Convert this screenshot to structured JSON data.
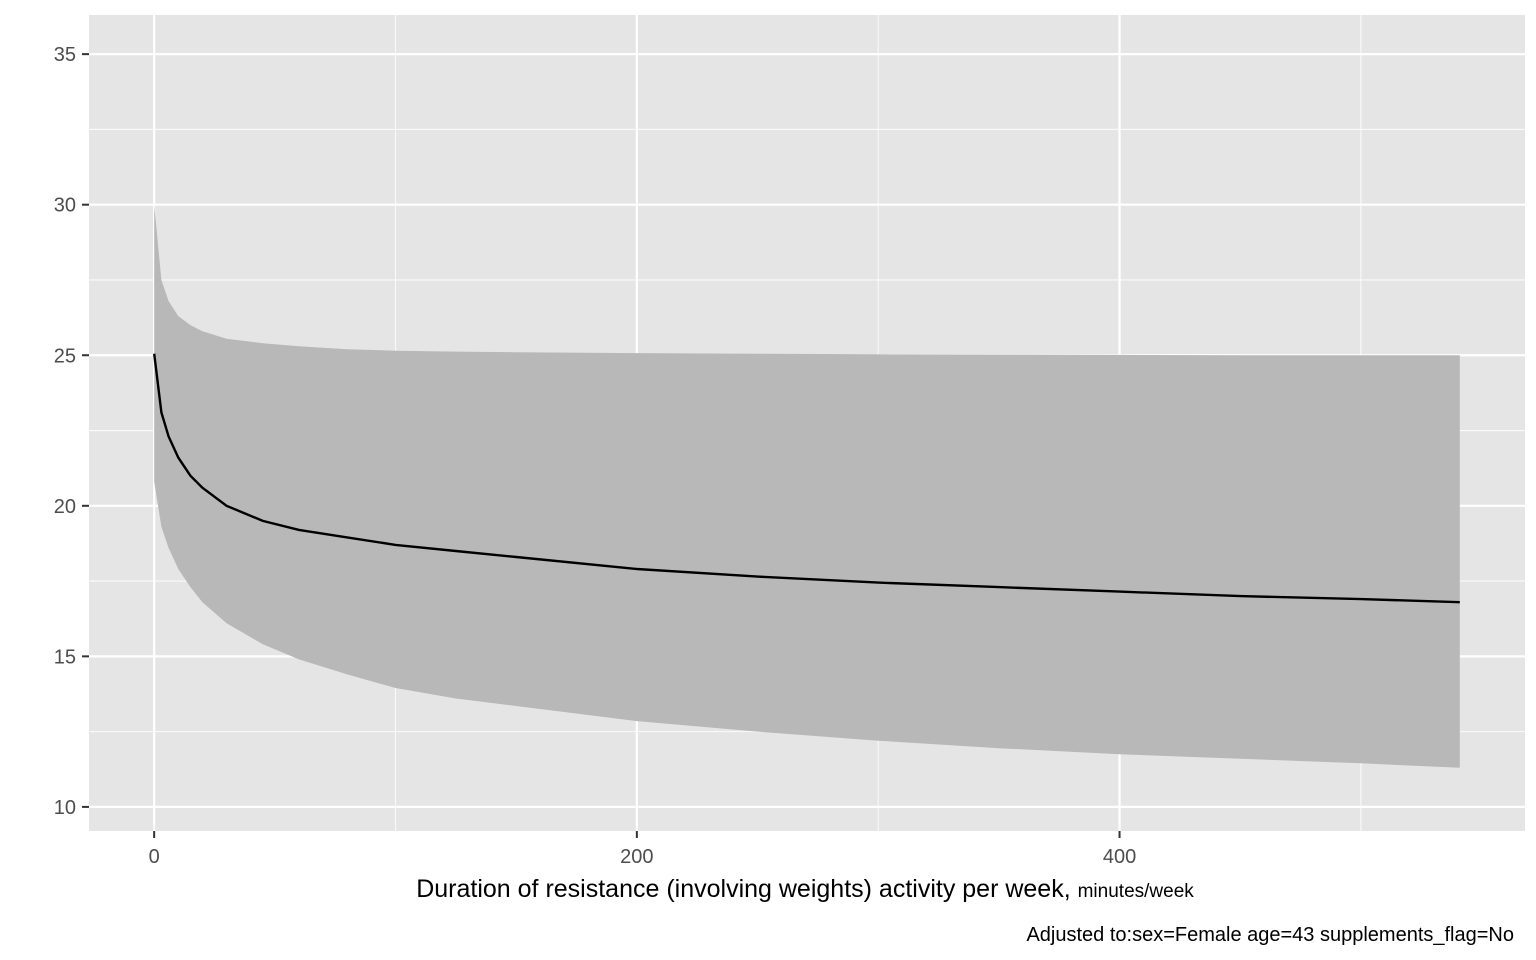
{
  "chart_data": {
    "type": "line",
    "xlabel": "Duration of resistance (involving weights) activity per week,",
    "xlabel_unit": "minutes/week",
    "ylabel": "",
    "caption": "Adjusted to:sex=Female age=43 supplements_flag=No",
    "xlim": [
      -27,
      568
    ],
    "ylim": [
      9.2,
      36.3
    ],
    "x_ticks": [
      0,
      200,
      400
    ],
    "y_ticks": [
      10,
      15,
      20,
      25,
      30,
      35
    ],
    "grid": true,
    "legend": "none",
    "colors": {
      "panel": "#e5e5e5",
      "grid": "#ffffff",
      "line": "#000000",
      "ribbon": "#b8b8b8",
      "tick_text": "#4d4d4d"
    },
    "series": [
      {
        "x": [
          0,
          3,
          6,
          10,
          15,
          20,
          30,
          45,
          60,
          80,
          100,
          125,
          150,
          200,
          250,
          300,
          350,
          400,
          450,
          500,
          541
        ],
        "y": [
          25.05,
          23.1,
          22.3,
          21.6,
          21.0,
          20.6,
          20.0,
          19.5,
          19.2,
          18.95,
          18.7,
          18.5,
          18.3,
          17.9,
          17.65,
          17.45,
          17.3,
          17.15,
          17.0,
          16.9,
          16.8
        ],
        "lower": [
          20.8,
          19.3,
          18.6,
          17.9,
          17.3,
          16.8,
          16.1,
          15.4,
          14.9,
          14.4,
          13.95,
          13.6,
          13.35,
          12.85,
          12.5,
          12.2,
          11.95,
          11.75,
          11.6,
          11.45,
          11.3
        ],
        "upper": [
          30.0,
          27.5,
          26.8,
          26.3,
          26.0,
          25.8,
          25.55,
          25.4,
          25.3,
          25.2,
          25.15,
          25.12,
          25.1,
          25.07,
          25.05,
          25.03,
          25.02,
          25.01,
          25.0,
          25.0,
          25.0
        ]
      }
    ]
  }
}
